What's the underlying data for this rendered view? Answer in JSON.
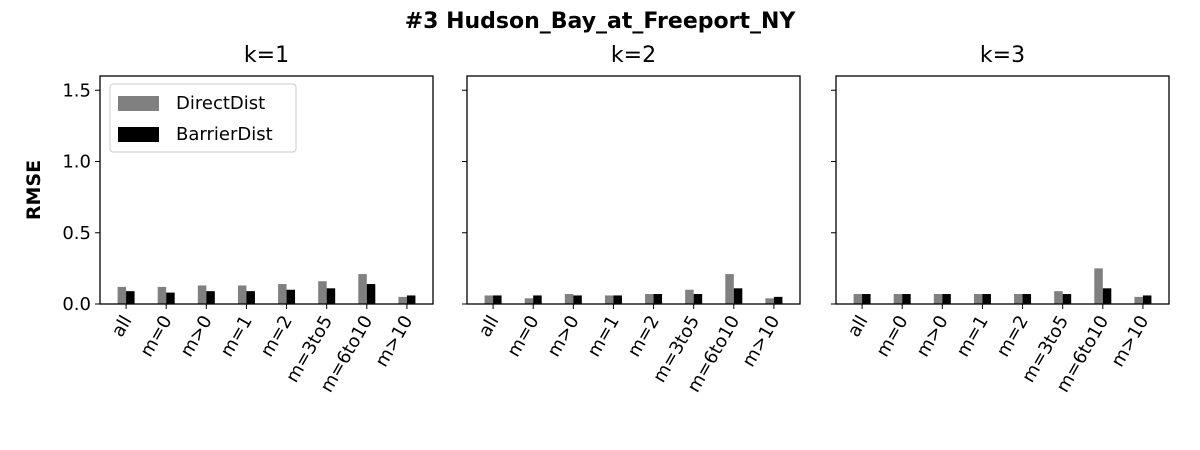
{
  "chart_data": {
    "type": "bar",
    "title": "#3 Hudson_Bay_at_Freeport_NY",
    "ylabel": "RMSE",
    "ylim": [
      0,
      1.6
    ],
    "yticks": [
      "0.0",
      "0.5",
      "1.0",
      "1.5"
    ],
    "ytick_values": [
      0,
      0.5,
      1.0,
      1.5
    ],
    "categories": [
      "all",
      "m=0",
      "m>0",
      "m=1",
      "m=2",
      "m=3to5",
      "m=6to10",
      "m>10"
    ],
    "legend": {
      "placement": "upper-left",
      "entries": [
        "DirectDist",
        "BarrierDist"
      ]
    },
    "colors": {
      "DirectDist": "#808080",
      "BarrierDist": "#000000"
    },
    "grid": false,
    "panels": [
      {
        "title": "k=1",
        "series": [
          {
            "name": "DirectDist",
            "values": [
              0.12,
              0.12,
              0.13,
              0.13,
              0.14,
              0.16,
              0.21,
              0.05
            ]
          },
          {
            "name": "BarrierDist",
            "values": [
              0.09,
              0.08,
              0.09,
              0.09,
              0.1,
              0.11,
              0.14,
              0.06
            ]
          }
        ]
      },
      {
        "title": "k=2",
        "series": [
          {
            "name": "DirectDist",
            "values": [
              0.06,
              0.04,
              0.07,
              0.06,
              0.07,
              0.1,
              0.21,
              0.04
            ]
          },
          {
            "name": "BarrierDist",
            "values": [
              0.06,
              0.06,
              0.06,
              0.06,
              0.07,
              0.07,
              0.11,
              0.05
            ]
          }
        ]
      },
      {
        "title": "k=3",
        "series": [
          {
            "name": "DirectDist",
            "values": [
              0.07,
              0.07,
              0.07,
              0.07,
              0.07,
              0.09,
              0.25,
              0.05
            ]
          },
          {
            "name": "BarrierDist",
            "values": [
              0.07,
              0.07,
              0.07,
              0.07,
              0.07,
              0.07,
              0.11,
              0.06
            ]
          }
        ]
      }
    ]
  }
}
